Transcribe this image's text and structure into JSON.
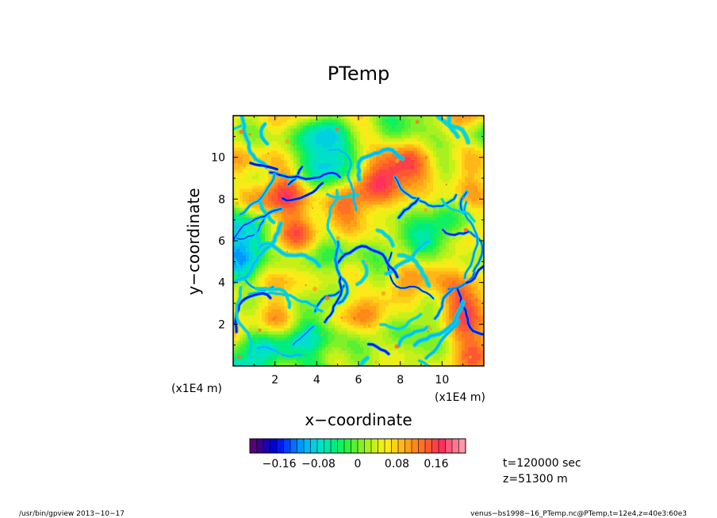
{
  "chart_data": {
    "type": "heatmap",
    "title": "PTemp",
    "xlabel": "x−coordinate",
    "ylabel": "y−coordinate",
    "x_unit": "(x1E4 m)",
    "y_unit": "(x1E4 m)",
    "xlim": [
      0,
      12
    ],
    "ylim": [
      0,
      12
    ],
    "x_ticks": [
      "2",
      "4",
      "6",
      "8",
      "10"
    ],
    "y_ticks": [
      "2",
      "4",
      "6",
      "8",
      "10"
    ],
    "colorbar": {
      "ticks": [
        "−0.16",
        "−0.08",
        "0",
        "0.08",
        "0.16"
      ],
      "tick_values": [
        -0.16,
        -0.08,
        0,
        0.08,
        0.16
      ],
      "range": [
        -0.22,
        0.22
      ],
      "colors": [
        "#5a007a",
        "#3a0090",
        "#1a00b0",
        "#0000d8",
        "#0018f0",
        "#0040ff",
        "#0070ff",
        "#0098ff",
        "#00b8f8",
        "#00d0e0",
        "#00e0c8",
        "#00e8a8",
        "#00ec80",
        "#10f060",
        "#30f040",
        "#58f030",
        "#80f028",
        "#a8f020",
        "#c8f018",
        "#e8f018",
        "#ffe818",
        "#ffd018",
        "#ffb818",
        "#ffa018",
        "#ff8818",
        "#ff7028",
        "#ff5830",
        "#ff4048",
        "#ff3060",
        "#ff5878",
        "#ff7890",
        "#ff98a8"
      ]
    },
    "field_description": "turbulent potential temperature perturbation, mostly near 0 (green/yellow) with thin negative filaments (blue)",
    "grid": false
  },
  "info": {
    "time": "t=120000 sec",
    "height": "z=51300 m"
  },
  "footer": {
    "left": "/usr/bin/gpview   2013−10−17",
    "right": "venus−bs1998−16_PTemp.nc@PTemp,t=12e4,z=40e3:60e3"
  }
}
